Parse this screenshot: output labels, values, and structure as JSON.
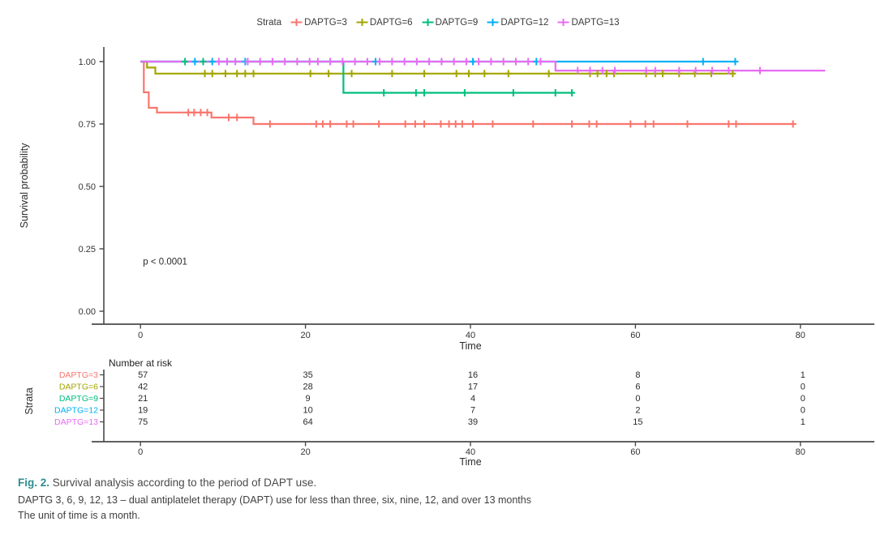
{
  "figure": {
    "legend_title": "Strata",
    "background": "#ffffff"
  },
  "chart_data": {
    "type": "line",
    "subtype": "kaplan-meier-step",
    "xlabel": "Time",
    "ylabel": "Survival probability",
    "xlim": [
      0,
      87
    ],
    "ylim": [
      0,
      1.0
    ],
    "x_ticks": [
      0,
      20,
      40,
      60,
      80
    ],
    "y_ticks": [
      {
        "v": 1.0,
        "label": "1.00"
      },
      {
        "v": 0.75,
        "label": "0.75"
      },
      {
        "v": 0.5,
        "label": "0.50"
      },
      {
        "v": 0.25,
        "label": "0.25"
      },
      {
        "v": 0.0,
        "label": "0.00"
      }
    ],
    "annotation": {
      "text": "p < 0.0001",
      "x": 0.3,
      "y": 0.2
    },
    "legend_position": "top",
    "grid": false,
    "series": [
      {
        "name": "DAPTG=3",
        "color": "#F8766D",
        "steps": [
          [
            0,
            1.0
          ],
          [
            0.4,
            0.877
          ],
          [
            1.0,
            0.815
          ],
          [
            2.0,
            0.796
          ],
          [
            8.6,
            0.776
          ],
          [
            13.7,
            0.75
          ]
        ],
        "end_time": 79.5,
        "censor_times": [
          5.8,
          6.5,
          7.3,
          8.1,
          10.7,
          11.7,
          15.7,
          21.3,
          22.1,
          23.0,
          25.0,
          25.8,
          28.9,
          32.1,
          33.3,
          34.4,
          36.4,
          37.4,
          38.2,
          39.0,
          40.3,
          42.7,
          47.6,
          52.3,
          54.4,
          55.3,
          59.4,
          61.2,
          62.2,
          66.3,
          71.3,
          72.2,
          79.1
        ]
      },
      {
        "name": "DAPTG=6",
        "color": "#A3A500",
        "steps": [
          [
            0,
            1.0
          ],
          [
            0.8,
            0.976
          ],
          [
            1.8,
            0.952
          ]
        ],
        "end_time": 72.0,
        "censor_times": [
          7.8,
          8.7,
          10.3,
          11.7,
          12.7,
          13.7,
          20.6,
          22.8,
          25.6,
          30.5,
          34.4,
          38.3,
          39.8,
          41.7,
          44.6,
          49.5,
          54.5,
          55.4,
          56.5,
          57.4,
          61.3,
          62.4,
          63.3,
          65.3,
          67.2,
          69.2,
          71.8
        ]
      },
      {
        "name": "DAPTG=9",
        "color": "#00BF7D",
        "steps": [
          [
            0,
            1.0
          ],
          [
            24.6,
            0.875
          ]
        ],
        "end_time": 52.5,
        "censor_times": [
          5.4,
          7.6,
          29.5,
          33.4,
          34.4,
          39.3,
          45.2,
          50.3,
          52.3
        ]
      },
      {
        "name": "DAPTG=12",
        "color": "#00B0F6",
        "steps": [
          [
            0,
            1.0
          ]
        ],
        "end_time": 72.3,
        "censor_times": [
          6.6,
          8.7,
          12.7,
          28.5,
          40.3,
          48.0,
          68.2,
          72.1
        ]
      },
      {
        "name": "DAPTG=13",
        "color": "#E76BF3",
        "steps": [
          [
            0,
            1.0
          ],
          [
            50.3,
            0.964
          ]
        ],
        "end_time": 83.0,
        "censor_times": [
          9.5,
          10.5,
          11.5,
          13.0,
          14.5,
          16.0,
          17.5,
          19.0,
          20.5,
          21.5,
          23.0,
          24.5,
          26.0,
          27.5,
          29.0,
          30.5,
          32.0,
          33.5,
          35.0,
          36.5,
          38.0,
          39.5,
          41.0,
          42.5,
          44.0,
          45.5,
          47.0,
          48.5,
          53.0,
          54.5,
          56.0,
          57.5,
          61.3,
          62.4,
          65.3,
          67.3,
          69.3,
          71.3,
          75.1
        ]
      }
    ],
    "number_at_risk": {
      "title": "Number at risk",
      "axis_label": "Strata",
      "xlabel": "Time",
      "times": [
        0,
        20,
        40,
        60,
        80
      ],
      "rows": [
        {
          "name": "DAPTG=3",
          "counts": [
            57,
            35,
            16,
            8,
            1
          ]
        },
        {
          "name": "DAPTG=6",
          "counts": [
            42,
            28,
            17,
            6,
            0
          ]
        },
        {
          "name": "DAPTG=9",
          "counts": [
            21,
            9,
            4,
            0,
            0
          ]
        },
        {
          "name": "DAPTG=12",
          "counts": [
            19,
            10,
            7,
            2,
            0
          ]
        },
        {
          "name": "DAPTG=13",
          "counts": [
            75,
            64,
            39,
            15,
            1
          ]
        }
      ]
    }
  },
  "caption": {
    "fig_label": "Fig. 2.",
    "title": "Survival analysis according to the period of DAPT use.",
    "line2": "DAPTG 3, 6, 9, 12, 13 – dual antiplatelet therapy (DAPT) use for less than three, six, nine, 12, and over 13 months",
    "line3": "The unit of time is a month."
  }
}
